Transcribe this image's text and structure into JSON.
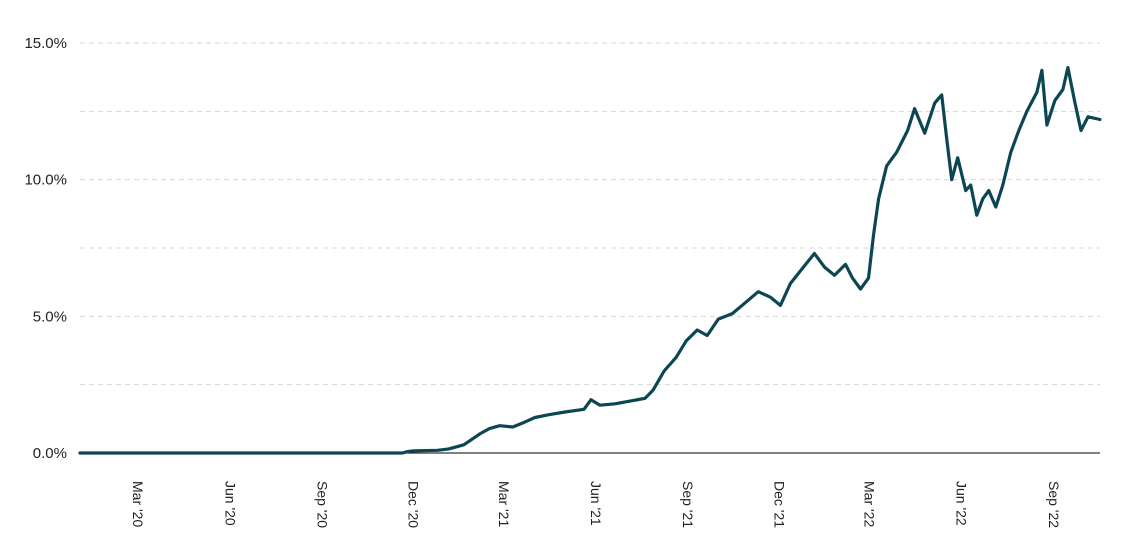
{
  "chart_data": {
    "type": "line",
    "title": "",
    "xlabel": "",
    "ylabel": "",
    "ylim": [
      0,
      15
    ],
    "xlim": [
      "2020-01-03",
      "2022-10-17"
    ],
    "yticks": [
      {
        "value": 0,
        "label": "0.0%"
      },
      {
        "value": 5,
        "label": "5.0%"
      },
      {
        "value": 10,
        "label": "10.0%"
      },
      {
        "value": 15,
        "label": "15.0%"
      }
    ],
    "ygrid_minor": [
      2.5,
      7.5,
      12.5
    ],
    "xticks": [
      {
        "date": "2020-03-01",
        "label": "Mar '20"
      },
      {
        "date": "2020-06-01",
        "label": "Jun '20"
      },
      {
        "date": "2020-09-01",
        "label": "Sep '20"
      },
      {
        "date": "2020-12-01",
        "label": "Dec '20"
      },
      {
        "date": "2021-03-01",
        "label": "Mar '21"
      },
      {
        "date": "2021-06-01",
        "label": "Jun '21"
      },
      {
        "date": "2021-09-01",
        "label": "Sep '21"
      },
      {
        "date": "2021-12-01",
        "label": "Dec '21"
      },
      {
        "date": "2022-03-01",
        "label": "Mar '22"
      },
      {
        "date": "2022-06-01",
        "label": "Jun '22"
      },
      {
        "date": "2022-09-01",
        "label": "Sep '22"
      }
    ],
    "grid": "horizontal-dashed",
    "legend": "none",
    "series": [
      {
        "color": "#0c4652",
        "points": [
          [
            "2020-01-03",
            0
          ],
          [
            "2020-11-20",
            0
          ],
          [
            "2020-11-25",
            0.05
          ],
          [
            "2020-12-01",
            0.08
          ],
          [
            "2020-12-25",
            0.1
          ],
          [
            "2021-01-05",
            0.15
          ],
          [
            "2021-01-20",
            0.3
          ],
          [
            "2021-02-05",
            0.7
          ],
          [
            "2021-02-15",
            0.9
          ],
          [
            "2021-02-25",
            1.0
          ],
          [
            "2021-03-10",
            0.95
          ],
          [
            "2021-03-20",
            1.1
          ],
          [
            "2021-04-01",
            1.3
          ],
          [
            "2021-04-15",
            1.4
          ],
          [
            "2021-05-01",
            1.5
          ],
          [
            "2021-05-20",
            1.6
          ],
          [
            "2021-05-27",
            1.95
          ],
          [
            "2021-06-05",
            1.75
          ],
          [
            "2021-06-20",
            1.8
          ],
          [
            "2021-07-05",
            1.9
          ],
          [
            "2021-07-20",
            2.0
          ],
          [
            "2021-07-28",
            2.3
          ],
          [
            "2021-08-08",
            3.0
          ],
          [
            "2021-08-20",
            3.5
          ],
          [
            "2021-08-30",
            4.1
          ],
          [
            "2021-09-10",
            4.5
          ],
          [
            "2021-09-20",
            4.3
          ],
          [
            "2021-10-01",
            4.9
          ],
          [
            "2021-10-15",
            5.1
          ],
          [
            "2021-10-28",
            5.5
          ],
          [
            "2021-11-10",
            5.9
          ],
          [
            "2021-11-22",
            5.7
          ],
          [
            "2021-12-02",
            5.4
          ],
          [
            "2021-12-12",
            6.2
          ],
          [
            "2021-12-25",
            6.8
          ],
          [
            "2022-01-05",
            7.3
          ],
          [
            "2022-01-15",
            6.8
          ],
          [
            "2022-01-25",
            6.5
          ],
          [
            "2022-02-05",
            6.9
          ],
          [
            "2022-02-12",
            6.4
          ],
          [
            "2022-02-20",
            6.0
          ],
          [
            "2022-02-28",
            6.4
          ],
          [
            "2022-03-05",
            8.0
          ],
          [
            "2022-03-10",
            9.3
          ],
          [
            "2022-03-18",
            10.5
          ],
          [
            "2022-03-28",
            11.0
          ],
          [
            "2022-04-08",
            11.8
          ],
          [
            "2022-04-15",
            12.6
          ],
          [
            "2022-04-25",
            11.7
          ],
          [
            "2022-05-05",
            12.8
          ],
          [
            "2022-05-12",
            13.1
          ],
          [
            "2022-05-17",
            11.5
          ],
          [
            "2022-05-22",
            10.0
          ],
          [
            "2022-05-28",
            10.8
          ],
          [
            "2022-06-05",
            9.6
          ],
          [
            "2022-06-10",
            9.8
          ],
          [
            "2022-06-16",
            8.7
          ],
          [
            "2022-06-22",
            9.3
          ],
          [
            "2022-06-28",
            9.6
          ],
          [
            "2022-07-05",
            9.0
          ],
          [
            "2022-07-12",
            9.8
          ],
          [
            "2022-07-20",
            11.0
          ],
          [
            "2022-07-28",
            11.8
          ],
          [
            "2022-08-05",
            12.5
          ],
          [
            "2022-08-15",
            13.2
          ],
          [
            "2022-08-20",
            14.0
          ],
          [
            "2022-08-25",
            12.0
          ],
          [
            "2022-09-02",
            12.9
          ],
          [
            "2022-09-10",
            13.3
          ],
          [
            "2022-09-15",
            14.1
          ],
          [
            "2022-09-22",
            12.8
          ],
          [
            "2022-09-28",
            11.8
          ],
          [
            "2022-10-05",
            12.3
          ],
          [
            "2022-10-17",
            12.2
          ]
        ]
      }
    ]
  }
}
